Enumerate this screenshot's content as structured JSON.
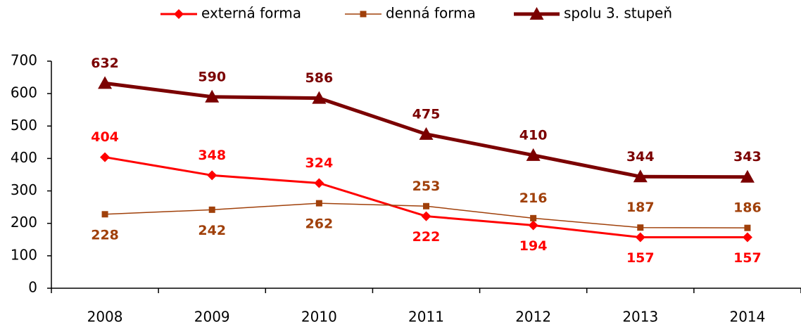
{
  "chart_data": {
    "type": "line",
    "categories": [
      "2008",
      "2009",
      "2010",
      "2011",
      "2012",
      "2013",
      "2014"
    ],
    "series": [
      {
        "name": "externá forma",
        "color": "#ff0000",
        "marker": "diamond",
        "values": [
          404,
          348,
          324,
          222,
          194,
          157,
          157
        ]
      },
      {
        "name": "denná forma",
        "color": "#a0400a",
        "marker": "square",
        "values": [
          228,
          242,
          262,
          253,
          216,
          187,
          186
        ]
      },
      {
        "name": "spolu 3. stupeň",
        "color": "#7b0000",
        "marker": "triangle",
        "values": [
          632,
          590,
          586,
          475,
          410,
          344,
          343
        ]
      }
    ],
    "ylim": [
      0,
      700
    ],
    "yticks": [
      0,
      100,
      200,
      300,
      400,
      500,
      600,
      700
    ],
    "grid": false,
    "legend": "top"
  }
}
